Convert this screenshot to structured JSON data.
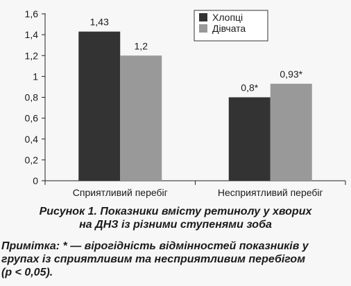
{
  "chart_data": {
    "type": "bar",
    "categories": [
      "Сприятливий перебіг",
      "Несприятливий перебіг"
    ],
    "series": [
      {
        "name": "Хлопці",
        "values": [
          1.43,
          0.8
        ],
        "labels": [
          "1,43",
          "0,8*"
        ],
        "color": "#333333"
      },
      {
        "name": "Дівчата",
        "values": [
          1.2,
          0.93
        ],
        "labels": [
          "1,2",
          "0,93*"
        ],
        "color": "#999999"
      }
    ],
    "ylim": [
      0,
      1.6
    ],
    "yticks": [
      0,
      0.2,
      0.4,
      0.6,
      0.8,
      1,
      1.2,
      1.4,
      1.6
    ],
    "ytick_labels": [
      "0",
      "0,2",
      "0,4",
      "0,6",
      "0,8",
      "1",
      "1,2",
      "1,4",
      "1,6"
    ],
    "grid": false,
    "legend_position": "top-right",
    "title": "",
    "xlabel": "",
    "ylabel": ""
  },
  "caption": {
    "line1": "Рисунок 1.  Показники вмісту ретинолу у хворих",
    "line2": "на ДНЗ із різними ступенями зоба"
  },
  "note": {
    "line1": "Примітка:  * — вірогідність відмінностей показників у",
    "line2": "групах із сприятливим та несприятливим перебігом",
    "line3": "(р < 0,05)."
  }
}
